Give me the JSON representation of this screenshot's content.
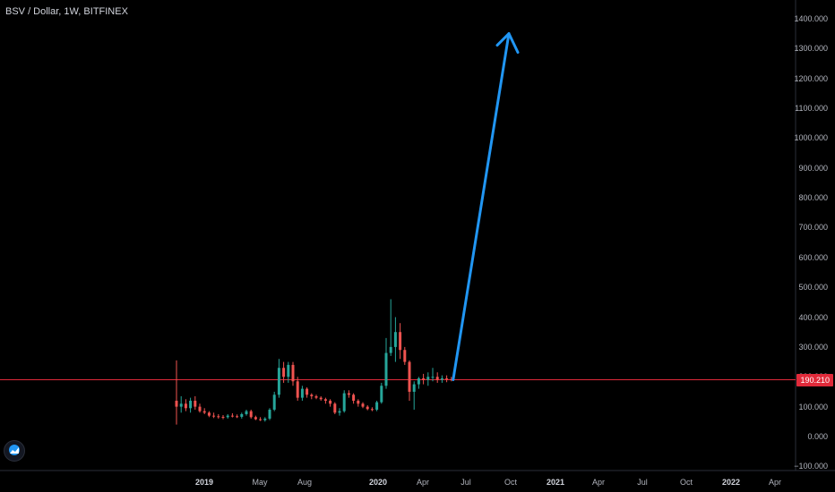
{
  "header": {
    "symbol": "BSV / Dollar, 1W, BITFINEX"
  },
  "price_tag": {
    "value": "190.210",
    "price": 190.21,
    "color": "#e02a3a"
  },
  "colors": {
    "up": "#26a69a",
    "down": "#ef5350",
    "arrow": "#2196f3",
    "axis": "#b2b5be",
    "price_line": "#e02a3a"
  },
  "icons": {
    "logo": "tradingview-logo-icon"
  },
  "chart_data": {
    "type": "candlestick",
    "title": "BSV / Dollar, 1W, BITFINEX",
    "y_ticks": [
      "1400.000",
      "1300.000",
      "1200.000",
      "1100.000",
      "1000.000",
      "900.000",
      "800.000",
      "700.000",
      "600.000",
      "500.000",
      "400.000",
      "300.000",
      "200.000",
      "100.000",
      "0.000",
      "−100.000"
    ],
    "y_range": [
      -100,
      1400
    ],
    "x_ticks": [
      {
        "label": "2019",
        "year": true
      },
      {
        "label": "May",
        "year": false
      },
      {
        "label": "Aug",
        "year": false
      },
      {
        "label": "2020",
        "year": true
      },
      {
        "label": "Apr",
        "year": false
      },
      {
        "label": "Jul",
        "year": false
      },
      {
        "label": "Oct",
        "year": false
      },
      {
        "label": "2021",
        "year": true
      },
      {
        "label": "Apr",
        "year": false
      },
      {
        "label": "Jul",
        "year": false
      },
      {
        "label": "Oct",
        "year": false
      },
      {
        "label": "2022",
        "year": true
      },
      {
        "label": "Apr",
        "year": false
      }
    ],
    "candles": [
      [
        120,
        255,
        40,
        100
      ],
      [
        100,
        135,
        80,
        110
      ],
      [
        110,
        125,
        85,
        95
      ],
      [
        95,
        130,
        80,
        120
      ],
      [
        120,
        135,
        90,
        100
      ],
      [
        100,
        110,
        80,
        85
      ],
      [
        85,
        95,
        75,
        80
      ],
      [
        80,
        85,
        65,
        70
      ],
      [
        70,
        80,
        62,
        68
      ],
      [
        68,
        75,
        60,
        66
      ],
      [
        66,
        72,
        58,
        65
      ],
      [
        65,
        75,
        60,
        70
      ],
      [
        70,
        78,
        64,
        68
      ],
      [
        68,
        74,
        62,
        66
      ],
      [
        66,
        80,
        60,
        75
      ],
      [
        75,
        90,
        70,
        85
      ],
      [
        85,
        90,
        60,
        65
      ],
      [
        65,
        70,
        55,
        58
      ],
      [
        58,
        65,
        52,
        55
      ],
      [
        55,
        65,
        50,
        60
      ],
      [
        60,
        95,
        55,
        90
      ],
      [
        90,
        150,
        85,
        140
      ],
      [
        140,
        260,
        130,
        230
      ],
      [
        230,
        250,
        180,
        200
      ],
      [
        200,
        250,
        180,
        240
      ],
      [
        240,
        250,
        170,
        185
      ],
      [
        185,
        200,
        120,
        130
      ],
      [
        130,
        170,
        120,
        160
      ],
      [
        160,
        165,
        130,
        140
      ],
      [
        140,
        145,
        125,
        135
      ],
      [
        135,
        140,
        125,
        130
      ],
      [
        130,
        135,
        120,
        125
      ],
      [
        125,
        130,
        110,
        120
      ],
      [
        120,
        125,
        100,
        110
      ],
      [
        110,
        115,
        75,
        80
      ],
      [
        80,
        95,
        70,
        85
      ],
      [
        85,
        155,
        80,
        145
      ],
      [
        145,
        155,
        130,
        140
      ],
      [
        140,
        145,
        110,
        120
      ],
      [
        120,
        125,
        100,
        110
      ],
      [
        110,
        115,
        95,
        100
      ],
      [
        100,
        105,
        88,
        92
      ],
      [
        92,
        98,
        85,
        90
      ],
      [
        90,
        120,
        85,
        115
      ],
      [
        115,
        180,
        110,
        170
      ],
      [
        170,
        330,
        160,
        280
      ],
      [
        280,
        460,
        270,
        300
      ],
      [
        300,
        400,
        250,
        350
      ],
      [
        350,
        380,
        260,
        290
      ],
      [
        290,
        300,
        240,
        250
      ],
      [
        250,
        255,
        120,
        150
      ],
      [
        150,
        185,
        90,
        175
      ],
      [
        175,
        200,
        160,
        195
      ],
      [
        195,
        210,
        175,
        190
      ],
      [
        190,
        215,
        170,
        200
      ],
      [
        200,
        230,
        185,
        200
      ],
      [
        200,
        215,
        180,
        190
      ],
      [
        190,
        205,
        180,
        195
      ],
      [
        195,
        205,
        182,
        192
      ],
      [
        192,
        200,
        185,
        190
      ]
    ],
    "annotations": [
      {
        "type": "arrow",
        "from": {
          "candle_index": 59,
          "price": 190.21
        },
        "to": {
          "date": "2020-10",
          "price": 1350
        }
      }
    ]
  }
}
